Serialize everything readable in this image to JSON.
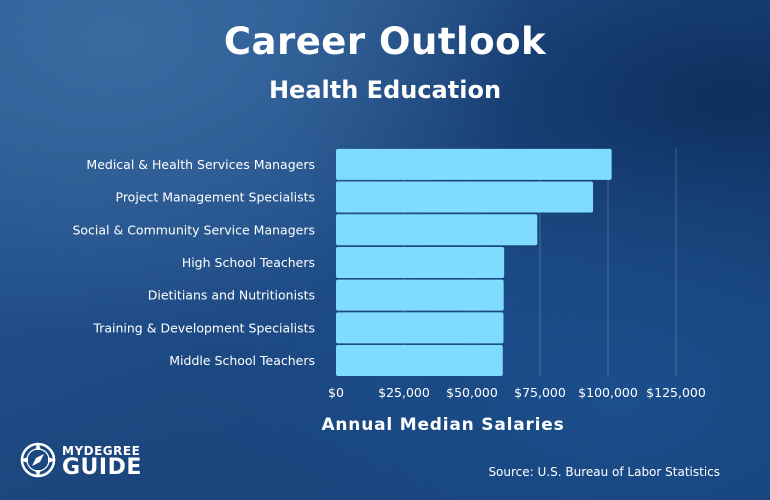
{
  "title": "Career Outlook",
  "subtitle": "Health Education",
  "source": "Source: U.S. Bureau of Labor Statistics",
  "logo": {
    "line1": "MYDEGREE",
    "line2": "GUIDE"
  },
  "colors": {
    "bar": "#7fdcff",
    "grid": "rgba(255,255,255,0.22)",
    "text": "#ffffff"
  },
  "chart_data": {
    "type": "bar",
    "orientation": "horizontal",
    "title": "Career Outlook",
    "subtitle": "Health Education",
    "xlabel": "Annual Median Salaries",
    "ylabel": "",
    "categories": [
      "Medical & Health Services Managers",
      "Project Management Specialists",
      "Social & Community Service Managers",
      "High School Teachers",
      "Dietitians and Nutritionists",
      "Training & Development Specialists",
      "Middle School Teachers"
    ],
    "values": [
      101340,
      94500,
      74000,
      61820,
      61650,
      61570,
      61320
    ],
    "xlim": [
      0,
      125000
    ],
    "xticks": [
      0,
      25000,
      50000,
      75000,
      100000,
      125000
    ],
    "xtick_labels": [
      "$0",
      "$25,000",
      "$50,000",
      "$75,000",
      "$100,000",
      "$125,000"
    ],
    "grid": true
  }
}
